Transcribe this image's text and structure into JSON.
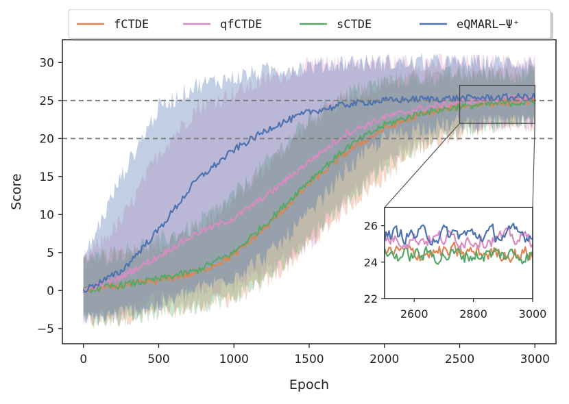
{
  "chart_data": {
    "type": "line",
    "xlabel": "Epoch",
    "ylabel": "Score",
    "xlim": [
      -140,
      3140
    ],
    "ylim": [
      -7,
      33
    ],
    "xticks": [
      0,
      500,
      1000,
      1500,
      2000,
      2500,
      3000
    ],
    "yticks": [
      -5,
      0,
      5,
      10,
      15,
      20,
      25,
      30
    ],
    "xtick_labels": [
      "0",
      "500",
      "1000",
      "1500",
      "2000",
      "2500",
      "3000"
    ],
    "ytick_labels": [
      "−5",
      "0",
      "5",
      "10",
      "15",
      "20",
      "25",
      "30"
    ],
    "reference_lines": [
      20,
      25
    ],
    "legend_position": "top (outside)",
    "series": [
      {
        "name": "fCTDE",
        "color": "#dd8452",
        "x": [
          0,
          250,
          500,
          750,
          1000,
          1250,
          1500,
          1750,
          2000,
          2250,
          2500,
          2750,
          3000
        ],
        "mean": [
          0.0,
          0.6,
          1.3,
          2.3,
          4.6,
          9.0,
          14.0,
          18.2,
          21.3,
          23.2,
          24.3,
          24.7,
          25.0
        ],
        "band_lower": [
          -4.0,
          -3.5,
          -3.0,
          -2.0,
          -1.0,
          1.5,
          6.0,
          11.0,
          15.0,
          19.0,
          21.0,
          22.0,
          22.0
        ],
        "band_upper": [
          4.0,
          5.0,
          6.0,
          8.0,
          12.0,
          17.0,
          22.0,
          25.5,
          27.5,
          28.0,
          28.5,
          28.5,
          28.5
        ]
      },
      {
        "name": "qfCTDE",
        "color": "#da8bc3",
        "x": [
          0,
          250,
          500,
          750,
          1000,
          1250,
          1500,
          1750,
          2000,
          2250,
          2500,
          2750,
          3000
        ],
        "mean": [
          0.0,
          1.8,
          4.5,
          7.5,
          9.5,
          13.0,
          17.0,
          20.7,
          22.8,
          24.0,
          24.8,
          25.2,
          25.4
        ],
        "band_lower": [
          -4.0,
          -3.0,
          -1.0,
          0.0,
          1.0,
          3.0,
          6.0,
          12.0,
          17.0,
          20.0,
          21.5,
          22.0,
          22.0
        ],
        "band_upper": [
          4.0,
          9.0,
          18.0,
          24.0,
          26.0,
          28.0,
          29.5,
          30.0,
          30.0,
          30.0,
          30.0,
          30.0,
          30.0
        ]
      },
      {
        "name": "sCTDE",
        "color": "#55a868",
        "x": [
          0,
          250,
          500,
          750,
          1000,
          1250,
          1500,
          1750,
          2000,
          2250,
          2500,
          2750,
          3000
        ],
        "mean": [
          0.0,
          0.7,
          1.5,
          2.6,
          5.0,
          9.5,
          14.5,
          18.8,
          21.8,
          23.4,
          24.2,
          24.6,
          24.8
        ],
        "band_lower": [
          -4.0,
          -3.5,
          -3.0,
          -2.0,
          -1.0,
          2.0,
          7.0,
          12.0,
          16.0,
          19.5,
          21.0,
          22.0,
          22.0
        ],
        "band_upper": [
          4.0,
          5.0,
          6.5,
          8.5,
          12.5,
          17.5,
          22.5,
          26.0,
          27.5,
          28.0,
          28.5,
          28.5,
          28.5
        ]
      },
      {
        "name": "eQMARL−Ψ⁺",
        "color": "#4c72b0",
        "x": [
          0,
          250,
          500,
          750,
          1000,
          1250,
          1500,
          1750,
          2000,
          2250,
          2500,
          2750,
          3000
        ],
        "mean": [
          0.0,
          2.5,
          8.0,
          14.5,
          18.5,
          21.5,
          23.5,
          24.5,
          25.0,
          25.2,
          25.3,
          25.4,
          25.5
        ],
        "band_lower": [
          -4.0,
          -3.0,
          -2.0,
          0.0,
          2.0,
          5.0,
          10.0,
          16.0,
          20.0,
          21.5,
          22.0,
          22.0,
          22.0
        ],
        "band_upper": [
          4.0,
          15.0,
          24.0,
          27.0,
          28.0,
          29.0,
          29.5,
          30.0,
          30.0,
          30.0,
          30.0,
          30.0,
          30.0
        ]
      }
    ],
    "inset": {
      "xlim": [
        2500,
        3000
      ],
      "ylim": [
        22,
        27
      ],
      "xticks": [
        2600,
        2800,
        3000
      ],
      "yticks": [
        22,
        24,
        26
      ],
      "xtick_labels": [
        "2600",
        "2800",
        "3000"
      ],
      "ytick_labels": [
        "22",
        "24",
        "26"
      ],
      "series_means": {
        "fCTDE": 24.5,
        "qfCTDE": 25.3,
        "sCTDE": 24.4,
        "eQMARL−Ψ⁺": 25.5
      }
    }
  }
}
